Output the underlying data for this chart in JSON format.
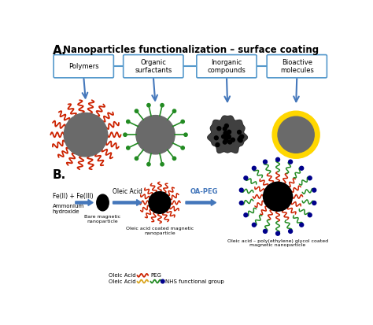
{
  "title": "Nanoparticles functionalization – surface coating",
  "section_a_label": "A.",
  "section_b_label": "B.",
  "box_labels": [
    "Polymers",
    "Organic\nsurfactants",
    "Inorganic\ncompounds",
    "Bioactive\nmolecules"
  ],
  "box_edge_color": "#5599cc",
  "arrow_color": "#4477bb",
  "core_color_gray": "#6a6a6a",
  "polymer_color": "#cc2200",
  "surfactant_color": "#228B22",
  "inorganic_color": "#111111",
  "bioactive_color": "#FFD700",
  "oleic_color": "#cc2200",
  "oleic2_color": "#DAA520",
  "peg_color": "#228B22",
  "nhs_color": "#00008B",
  "background_color": "#ffffff"
}
